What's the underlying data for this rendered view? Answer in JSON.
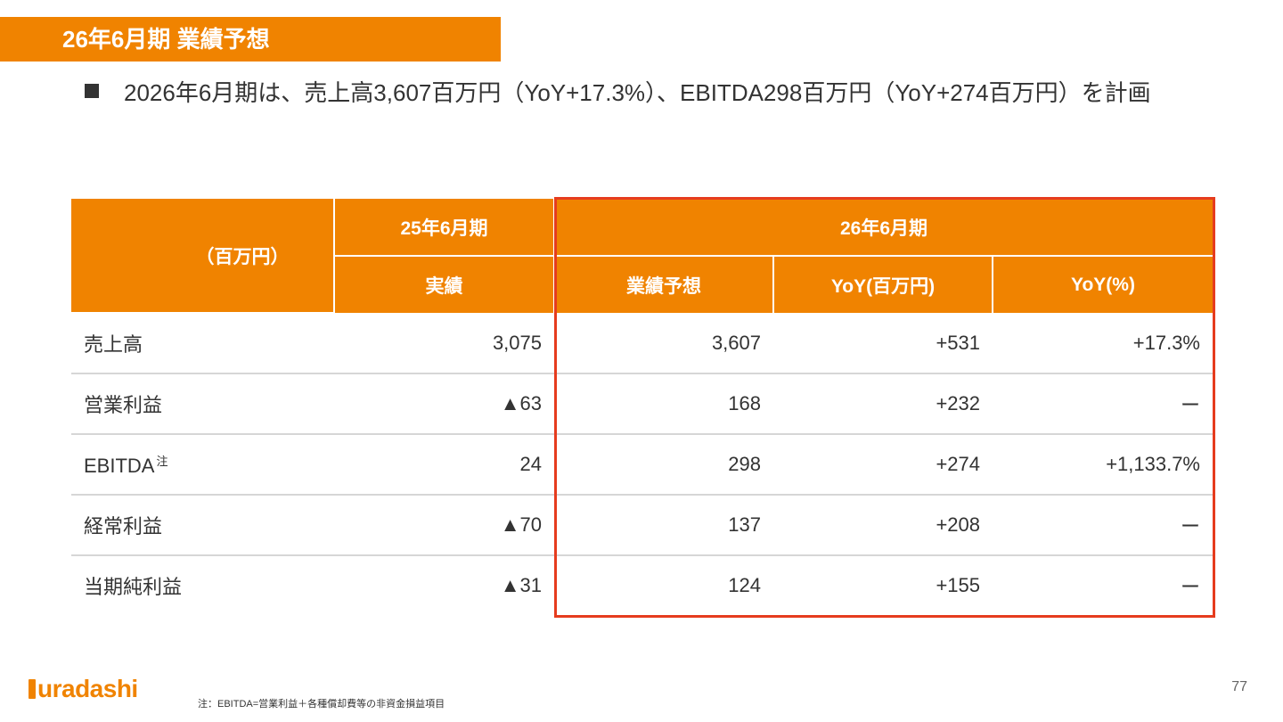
{
  "slide": {
    "title": "26年6月期 業績予想",
    "bullet": "2026年6月期は、売上高3,607百万円（YoY+17.3%）、EBITDA298百万円（YoY+274百万円）を計画",
    "page_number": "77",
    "footnote": "注：EBITDA=営業利益＋各種償却費等の非資金損益項目",
    "logo_text": "uradashi",
    "highlight_color": "#e63c1e",
    "accent_color": "#f08300"
  },
  "table": {
    "unit_label": "（百万円）",
    "period_prev": "25年6月期",
    "period_next": "26年6月期",
    "columns": [
      "実績",
      "業績予想",
      "YoY(百万円)",
      "YoY(%)"
    ],
    "rows": [
      {
        "label": "売上高",
        "note": "",
        "actual": "3,075",
        "forecast": "3,607",
        "yoy_amount": "+531",
        "yoy_pct": "+17.3%"
      },
      {
        "label": "営業利益",
        "note": "",
        "actual": "▲63",
        "forecast": "168",
        "yoy_amount": "+232",
        "yoy_pct": "ー"
      },
      {
        "label": "EBITDA",
        "note": "注",
        "actual": "24",
        "forecast": "298",
        "yoy_amount": "+274",
        "yoy_pct": "+1,133.7%"
      },
      {
        "label": "経常利益",
        "note": "",
        "actual": "▲70",
        "forecast": "137",
        "yoy_amount": "+208",
        "yoy_pct": "ー"
      },
      {
        "label": "当期純利益",
        "note": "",
        "actual": "▲31",
        "forecast": "124",
        "yoy_amount": "+155",
        "yoy_pct": "ー"
      }
    ]
  }
}
